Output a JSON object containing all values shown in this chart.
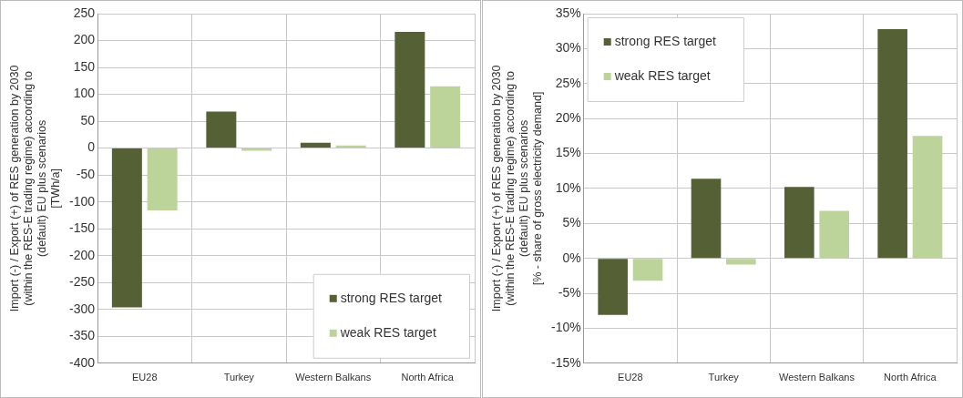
{
  "chart_data": [
    {
      "type": "bar",
      "ylabel": "Import (-) / Export (+) of RES generation by 2030\n(within the RES-E trading regime) according to\n(default) EU plus scenarios\n[TWh/a]",
      "categories": [
        "EU28",
        "Turkey",
        "Western Balkans",
        "North Africa"
      ],
      "series": [
        {
          "name": "strong RES target",
          "color": "#556035",
          "values": [
            -296,
            68,
            10,
            216
          ]
        },
        {
          "name": "weak RES target",
          "color": "#bcd39a",
          "values": [
            -116,
            -5,
            5,
            115
          ]
        }
      ],
      "ylim": [
        -400,
        250
      ],
      "yticks": [
        -400,
        -350,
        -300,
        -250,
        -200,
        -150,
        -100,
        -50,
        0,
        50,
        100,
        150,
        200,
        250
      ],
      "grid": true,
      "legend": "bottom right"
    },
    {
      "type": "bar",
      "ylabel": "Import (-) / Export (+) of RES generation by 2030\n(within the RES-E trading regime) according to\n(default) EU plus scenarios\n[% - share of gross electricity demand]",
      "categories": [
        "EU28",
        "Turkey",
        "Western Balkans",
        "North Africa"
      ],
      "series": [
        {
          "name": "strong RES target",
          "color": "#556035",
          "values": [
            -8.1,
            11.4,
            10.2,
            32.8
          ]
        },
        {
          "name": "weak RES target",
          "color": "#bcd39a",
          "values": [
            -3.2,
            -0.9,
            6.8,
            17.5
          ]
        }
      ],
      "ylim": [
        -15,
        35
      ],
      "yticks": [
        {
          "value": -15,
          "label": "-15%"
        },
        {
          "value": -10,
          "label": "-10%"
        },
        {
          "value": -5,
          "label": "-5%"
        },
        {
          "value": 0,
          "label": "0%"
        },
        {
          "value": 5,
          "label": "5%"
        },
        {
          "value": 10,
          "label": "10%"
        },
        {
          "value": 15,
          "label": "15%"
        },
        {
          "value": 20,
          "label": "20%"
        },
        {
          "value": 25,
          "label": "25%"
        },
        {
          "value": 30,
          "label": "30%"
        },
        {
          "value": 35,
          "label": "35%"
        }
      ],
      "grid": true,
      "legend": "top left"
    }
  ]
}
